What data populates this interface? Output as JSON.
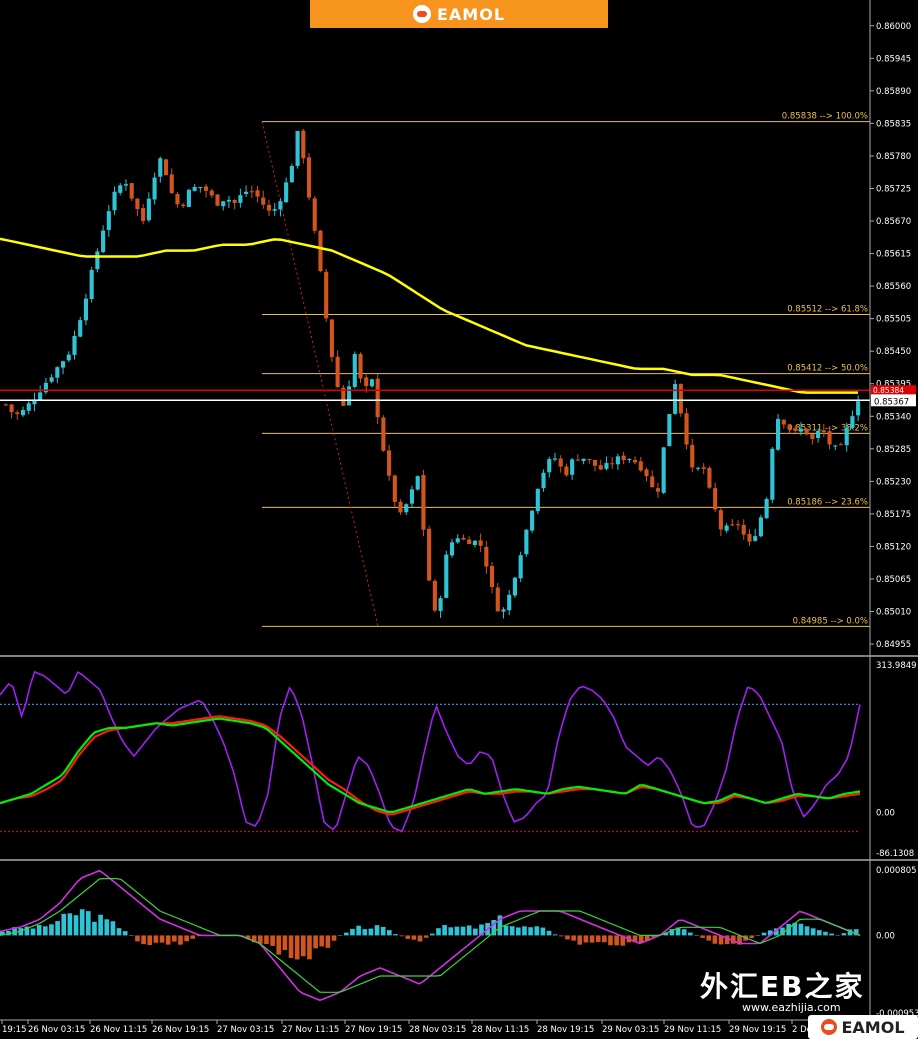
{
  "brand": {
    "top_logo": "EAMOL",
    "bottom_logo": "EAMOL",
    "watermark": "外汇EB之家",
    "watermark_url": "www.eazhijia.com"
  },
  "colors": {
    "bg": "#000000",
    "bull": "#2ec4d6",
    "bear": "#d2551e",
    "ma": "#ffff00",
    "fib": "#e8c04b",
    "axis_text": "#ffffff",
    "red_line": "#e00000",
    "white_line": "#ffffff",
    "rsi": "#a020f0",
    "k_line": "#00ee00",
    "d_line": "#ff1a1a",
    "level_blue": "#3a7fd0",
    "level_red": "#c01010",
    "macd_pos": "#2ec4d6",
    "macd_neg": "#d2551e",
    "signal_magenta": "#d030e0",
    "signal_green": "#40d040"
  },
  "chart_data": [
    {
      "type": "candlestick",
      "panel": "price",
      "y_ticks": [
        "0.86000",
        "0.85945",
        "0.85890",
        "0.85835",
        "0.85780",
        "0.85725",
        "0.85670",
        "0.85615",
        "0.85560",
        "0.85505",
        "0.85450",
        "0.85395",
        "0.85340",
        "0.85285",
        "0.85230",
        "0.85175",
        "0.85120",
        "0.85065",
        "0.85010",
        "0.84955"
      ],
      "ylim": [
        0.84945,
        0.8603
      ],
      "fib_levels": [
        {
          "price": 0.85838,
          "label": "0.85838 --> 100.0%"
        },
        {
          "price": 0.85512,
          "label": "0.85512 --> 61.8%"
        },
        {
          "price": 0.85412,
          "label": "0.85412 --> 50.0%"
        },
        {
          "price": 0.85311,
          "label": "0.85311 --> 38.2%"
        },
        {
          "price": 0.85186,
          "label": "0.85186 --> 23.6%"
        },
        {
          "price": 0.84985,
          "label": "0.84985 --> 0.0%"
        }
      ],
      "current_price_label": "0.85367",
      "red_price_label": "0.85384",
      "red_line_price": 0.85384,
      "white_line_price": 0.85367,
      "close_path": [
        0.8536,
        0.8534,
        0.8535,
        0.8537,
        0.8539,
        0.8541,
        0.8543,
        0.8545,
        0.855,
        0.8556,
        0.8562,
        0.8568,
        0.8572,
        0.8574,
        0.857,
        0.8567,
        0.8574,
        0.8578,
        0.8572,
        0.8569,
        0.8572,
        0.8573,
        0.8572,
        0.857,
        0.8571,
        0.857,
        0.8572,
        0.8572,
        0.857,
        0.8568,
        0.8571,
        0.8575,
        0.8583,
        0.8572,
        0.8562,
        0.855,
        0.854,
        0.8535,
        0.8545,
        0.8538,
        0.854,
        0.853,
        0.8522,
        0.8517,
        0.852,
        0.8524,
        0.8508,
        0.8499,
        0.851,
        0.8514,
        0.8513,
        0.8513,
        0.8512,
        0.8505,
        0.85,
        0.8504,
        0.851,
        0.8516,
        0.8522,
        0.8526,
        0.8527,
        0.8524,
        0.8527,
        0.8527,
        0.8526,
        0.8525,
        0.8526,
        0.8527,
        0.8527,
        0.8526,
        0.8524,
        0.852,
        0.8531,
        0.854,
        0.8532,
        0.8524,
        0.8526,
        0.852,
        0.8515,
        0.8515,
        0.8516,
        0.8512,
        0.8515,
        0.852,
        0.8534,
        0.8533,
        0.8531,
        0.8532,
        0.853,
        0.8532,
        0.8529,
        0.8528,
        0.8533,
        0.8537
      ],
      "ma_path": [
        0.8564,
        0.8563,
        0.8562,
        0.8561,
        0.8561,
        0.8561,
        0.8562,
        0.8562,
        0.8563,
        0.8563,
        0.8564,
        0.8563,
        0.8562,
        0.856,
        0.8558,
        0.8555,
        0.8552,
        0.855,
        0.8548,
        0.8546,
        0.8545,
        0.8544,
        0.8543,
        0.8542,
        0.8542,
        0.8541,
        0.8541,
        0.854,
        0.8539,
        0.8538,
        0.8538,
        0.8538
      ]
    },
    {
      "type": "line",
      "panel": "oscillator",
      "y_ticks": [
        "313.9849",
        "0.00",
        "-86.1308"
      ],
      "ylim": [
        -90,
        320
      ],
      "levels": [
        {
          "value": 230,
          "color": "blue"
        },
        {
          "value": -40,
          "color": "red"
        }
      ],
      "rsi_path": [
        250,
        280,
        200,
        300,
        290,
        270,
        250,
        300,
        280,
        260,
        200,
        150,
        120,
        150,
        180,
        200,
        220,
        230,
        240,
        200,
        150,
        80,
        -20,
        -30,
        40,
        200,
        270,
        210,
        100,
        -20,
        -40,
        40,
        120,
        100,
        40,
        -30,
        -40,
        20,
        130,
        230,
        170,
        120,
        100,
        130,
        120,
        40,
        -20,
        -10,
        20,
        40,
        160,
        240,
        270,
        260,
        240,
        200,
        140,
        120,
        100,
        120,
        90,
        40,
        -30,
        -30,
        20,
        90,
        200,
        270,
        250,
        200,
        150,
        40,
        -10,
        20,
        60,
        80,
        120,
        230
      ],
      "k_path": [
        20,
        30,
        40,
        60,
        80,
        130,
        170,
        180,
        180,
        185,
        190,
        185,
        190,
        195,
        200,
        195,
        190,
        180,
        150,
        120,
        90,
        60,
        40,
        20,
        10,
        0,
        10,
        20,
        30,
        40,
        50,
        40,
        45,
        50,
        45,
        40,
        50,
        55,
        50,
        45,
        40,
        60,
        50,
        40,
        30,
        20,
        25,
        40,
        30,
        20,
        30,
        40,
        35,
        30,
        40,
        45
      ],
      "d_path": [
        20,
        30,
        35,
        50,
        70,
        120,
        160,
        175,
        180,
        185,
        190,
        190,
        195,
        200,
        205,
        200,
        195,
        185,
        160,
        130,
        100,
        70,
        50,
        25,
        5,
        -5,
        5,
        15,
        25,
        35,
        45,
        40,
        40,
        45,
        45,
        40,
        45,
        50,
        50,
        45,
        40,
        55,
        50,
        40,
        30,
        20,
        20,
        35,
        30,
        20,
        25,
        35,
        35,
        30,
        35,
        40
      ]
    },
    {
      "type": "bar",
      "panel": "macd",
      "y_ticks": [
        "0.000805",
        "0.00",
        "-0.000953"
      ],
      "ylim": [
        -0.00098,
        0.00083
      ],
      "macd_path": [
        5e-05,
        0.0001,
        0.0002,
        0.0004,
        0.0007,
        0.0008,
        0.0006,
        0.0004,
        0.0002,
        0.0001,
        0.0,
        0.0,
        0.0,
        -0.0001,
        -0.0004,
        -0.0007,
        -0.0008,
        -0.0007,
        -0.0005,
        -0.0004,
        -0.0005,
        -0.0006,
        -0.0004,
        -0.0002,
        0.0,
        0.0002,
        0.0003,
        0.0003,
        0.0003,
        0.0002,
        0.0001,
        0.0,
        -0.0001,
        0.0,
        0.0002,
        0.0001,
        0.0,
        -0.0001,
        -0.0001,
        0.0001,
        0.0003,
        0.0002,
        0.0001,
        0.0
      ],
      "signal_path": [
        0.0,
        5e-05,
        0.00015,
        0.0003,
        0.0005,
        0.0007,
        0.0007,
        0.0005,
        0.0003,
        0.0002,
        0.0001,
        0.0,
        0.0,
        -0.0001,
        -0.0003,
        -0.0005,
        -0.0007,
        -0.0007,
        -0.0006,
        -0.0005,
        -0.0005,
        -0.0005,
        -0.0005,
        -0.0003,
        -0.0001,
        0.0001,
        0.0002,
        0.0003,
        0.0003,
        0.0003,
        0.0002,
        0.0001,
        0.0,
        0.0,
        0.0001,
        0.0001,
        0.0001,
        0.0,
        -0.0001,
        0.0,
        0.0002,
        0.0002,
        0.0001,
        0.0
      ],
      "hist_path": [
        5e-05,
        0.0001,
        0.0001,
        0.0002,
        0.0003,
        0.0002,
        0.0001,
        -0.0001,
        -0.0001,
        -0.0001,
        0.0,
        0.0,
        0.0,
        -0.0001,
        -0.0002,
        -0.0003,
        -0.0002,
        0.0,
        0.0001,
        0.0001,
        0.0,
        -0.0001,
        0.0001,
        0.0001,
        0.0001,
        0.0002,
        0.0001,
        0.0001,
        0.0,
        -0.0001,
        -0.0001,
        -0.0001,
        -0.0001,
        0.0,
        0.0001,
        0.0,
        -0.0001,
        -0.0001,
        0.0,
        0.0001,
        0.0002,
        0.0001,
        0.0,
        0.0001
      ]
    }
  ],
  "x_labels": [
    "19:15",
    "26 Nov 03:15",
    "26 Nov 11:15",
    "26 Nov 19:15",
    "27 Nov 03:15",
    "27 Nov 11:15",
    "27 Nov 19:15",
    "28 Nov 03:15",
    "28 Nov 11:15",
    "28 Nov 19:15",
    "29 Nov 03:15",
    "29 Nov 11:15",
    "29 Nov 19:15",
    "2 De"
  ]
}
